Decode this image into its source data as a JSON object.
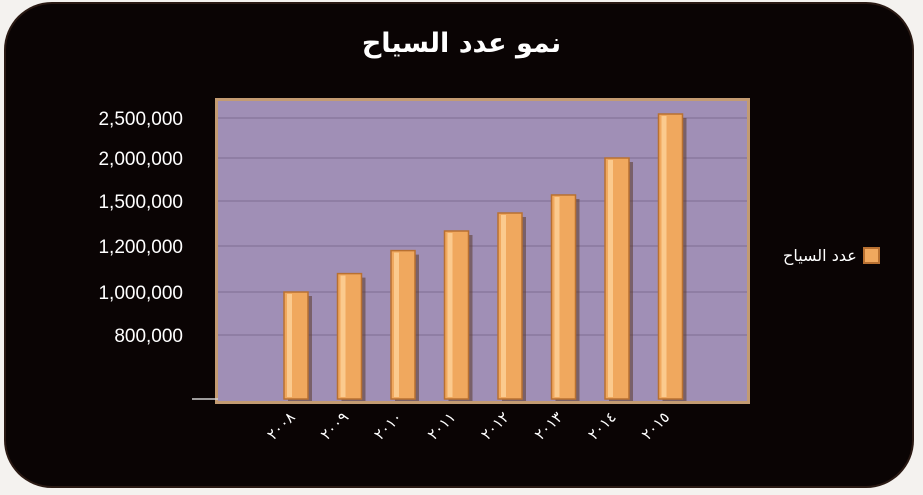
{
  "chart_data": {
    "type": "bar",
    "title": "نمو عدد السياح",
    "categories": [
      "٢٠٠٨",
      "٢٠٠٩",
      "٢٠١٠",
      "٢٠١١",
      "٢٠١٢",
      "٢٠١٣",
      "٢٠١٤",
      "٢٠١٥"
    ],
    "series": [
      {
        "name": "عدد السياح",
        "values": [
          1000000,
          1080000,
          1180000,
          1300000,
          1420000,
          1570000,
          2000000,
          2550000
        ]
      }
    ],
    "yticks": [
      "2,500,000",
      "2,000,000",
      "1,500,000",
      "1,200,000",
      "1,000,000",
      "800,000"
    ],
    "legend_position": "right",
    "colors": {
      "background": "#0a0404",
      "plot_area": "#a08fb6",
      "bar": "#f0a85e",
      "bar_edge": "#b87031"
    }
  }
}
